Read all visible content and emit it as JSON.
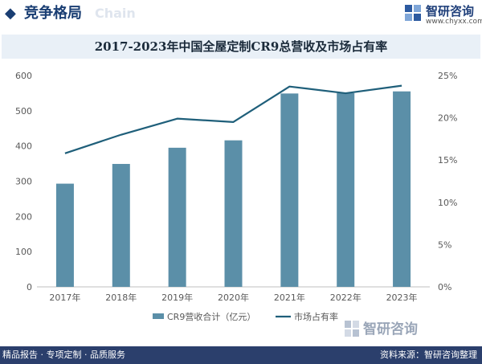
{
  "header": {
    "title": "竞争格局",
    "deco_text": "Chain",
    "brand_name": "智研咨询",
    "brand_url": "www.chyxx.com"
  },
  "chart_title": "2017-2023年中国全屋定制CR9总营收及市场占有率",
  "colors": {
    "bar": "#5b8fa8",
    "line": "#1f5f7a",
    "title_bg": "#e9f0f7",
    "footer_bg": "#2b3f6c"
  },
  "chart_data": {
    "type": "bar+line",
    "categories": [
      "2017年",
      "2018年",
      "2019年",
      "2020年",
      "2021年",
      "2022年",
      "2023年"
    ],
    "series": [
      {
        "name": "CR9营收合计（亿元）",
        "type": "bar",
        "axis": "left",
        "values": [
          293,
          349,
          395,
          416,
          549,
          550,
          555
        ]
      },
      {
        "name": "市场占有率",
        "type": "line",
        "axis": "right",
        "values": [
          15.8,
          18.0,
          19.9,
          19.5,
          23.7,
          22.9,
          23.8
        ]
      }
    ],
    "y_left": {
      "min": 0,
      "max": 600,
      "step": 100,
      "ticks": [
        "0",
        "100",
        "200",
        "300",
        "400",
        "500",
        "600"
      ]
    },
    "y_right": {
      "min": 0,
      "max": 25,
      "step": 5,
      "ticks": [
        "0%",
        "5%",
        "10%",
        "15%",
        "20%",
        "25%"
      ]
    },
    "legend_position": "bottom"
  },
  "watermark": {
    "brand": "智研咨询"
  },
  "footer": {
    "left": "精品报告 · 专项定制 · 品质服务",
    "right": "资料来源：智研咨询整理"
  }
}
